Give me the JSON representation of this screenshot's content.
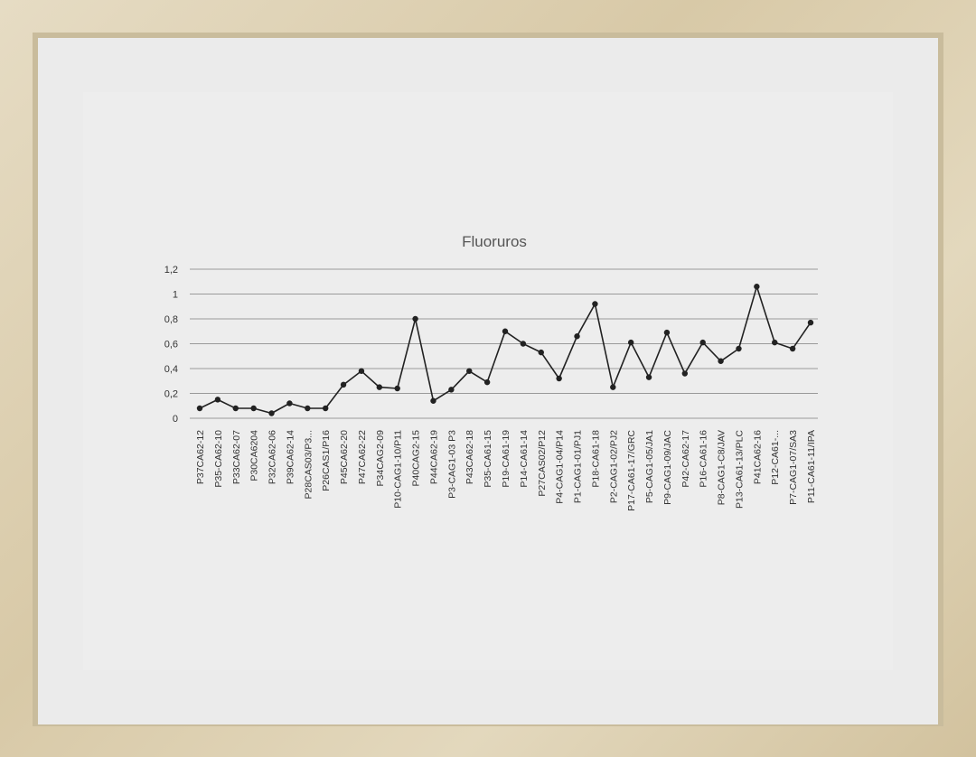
{
  "chart_data": {
    "type": "line",
    "title": "Fluoruros",
    "xlabel": "",
    "ylabel": "",
    "ylim": [
      0,
      1.2
    ],
    "yticks": [
      "0",
      "0,2",
      "0,4",
      "0,6",
      "0,8",
      "1",
      "1,2"
    ],
    "grid": true,
    "categories": [
      "P37CA62-12",
      "P35-CA62-10",
      "P33CA62-07",
      "P30CA6204",
      "P32CA62-06",
      "P39CA62-14",
      "P28CAS03/P3...",
      "P26CAS1/P16",
      "P45CA62-20",
      "P47CA62-22",
      "P34CAG2-09",
      "P10-CAG1-10/P11",
      "P40CAG2-15",
      "P44CA62-19",
      "P3-CAG1-03 P3",
      "P43CA62-18",
      "P35-CA61-15",
      "P19-CA61-19",
      "P14-CA61-14",
      "P27CAS02/P12",
      "P4-CAG1-04/P14",
      "P1-CAG1-01/PJ1",
      "P18-CA61-18",
      "P2-CAG1-02/PJ2",
      "P17-CA61-17/GRC",
      "P5-CAG1-05/JA1",
      "P9-CAG1-09/JAC",
      "P42-CA62-17",
      "P16-CA61-16",
      "P8-CAG1-C8/JAV",
      "P13-CA61-13/PLC",
      "P41CA62-16",
      "P12-CA61-...",
      "P7-CAG1-07/SA3",
      "P11-CA61-11/IPA"
    ],
    "values": [
      0.08,
      0.15,
      0.08,
      0.08,
      0.04,
      0.12,
      0.08,
      0.08,
      0.27,
      0.38,
      0.25,
      0.24,
      0.8,
      0.14,
      0.23,
      0.38,
      0.29,
      0.7,
      0.6,
      0.53,
      0.32,
      0.66,
      0.92,
      0.25,
      0.61,
      0.33,
      0.69,
      0.36,
      0.61,
      0.46,
      0.56,
      1.06,
      0.61,
      0.56,
      0.77
    ]
  }
}
